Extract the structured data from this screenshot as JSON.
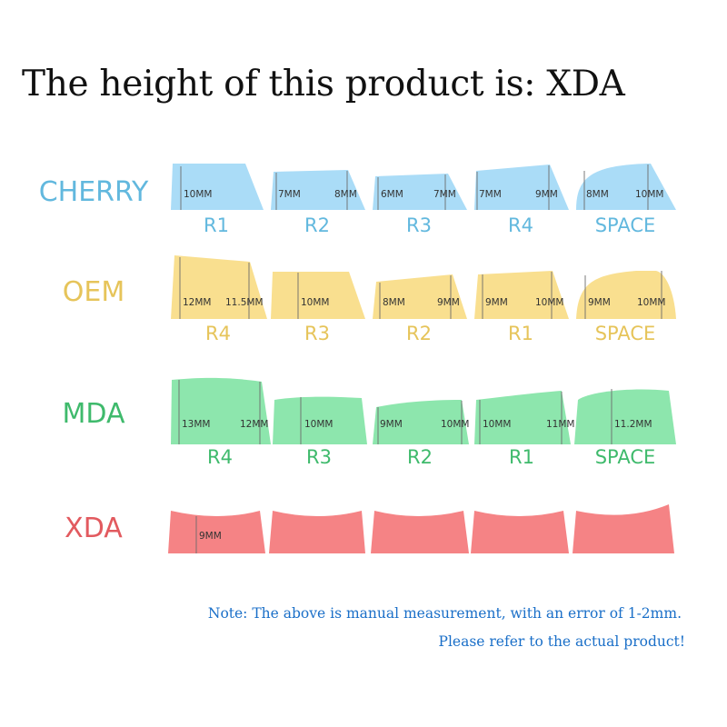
{
  "title": "The height of this product is: XDA",
  "colors": {
    "cherry_fill": "#aadcf7",
    "cherry_text": "#62b8de",
    "oem_fill": "#f9df8f",
    "oem_text": "#e6c45a",
    "mda_fill": "#8de6ad",
    "mda_text": "#3fba6c",
    "xda_fill": "#f58385",
    "xda_text": "#e25a5f",
    "row_label": "#555555",
    "note": "#1a6fc8"
  },
  "profiles": [
    {
      "name": "CHERRY",
      "keys": [
        {
          "row": "R1",
          "measurements": [
            "10MM"
          ]
        },
        {
          "row": "R2",
          "measurements": [
            "7MM",
            "8MM"
          ]
        },
        {
          "row": "R3",
          "measurements": [
            "6MM",
            "7MM"
          ]
        },
        {
          "row": "R4",
          "measurements": [
            "7MM",
            "9MM"
          ]
        },
        {
          "row": "SPACE",
          "measurements": [
            "8MM",
            "10MM"
          ]
        }
      ]
    },
    {
      "name": "OEM",
      "keys": [
        {
          "row": "R4",
          "measurements": [
            "12MM",
            "11.5MM"
          ]
        },
        {
          "row": "R3",
          "measurements": [
            "10MM"
          ]
        },
        {
          "row": "R2",
          "measurements": [
            "8MM",
            "9MM"
          ]
        },
        {
          "row": "R1",
          "measurements": [
            "9MM",
            "10MM"
          ]
        },
        {
          "row": "SPACE",
          "measurements": [
            "9MM",
            "10MM"
          ]
        }
      ]
    },
    {
      "name": "MDA",
      "keys": [
        {
          "row": "R4",
          "measurements": [
            "13MM",
            "12MM"
          ]
        },
        {
          "row": "R3",
          "measurements": [
            "10MM"
          ]
        },
        {
          "row": "R2",
          "measurements": [
            "9MM",
            "10MM"
          ]
        },
        {
          "row": "R1",
          "measurements": [
            "10MM",
            "11MM"
          ]
        },
        {
          "row": "SPACE",
          "measurements": [
            "11.2MM"
          ]
        }
      ]
    },
    {
      "name": "XDA",
      "keys": [
        {
          "row": "",
          "measurements": [
            "9MM"
          ]
        },
        {
          "row": "",
          "measurements": []
        },
        {
          "row": "",
          "measurements": []
        },
        {
          "row": "",
          "measurements": []
        },
        {
          "row": "",
          "measurements": []
        }
      ]
    }
  ],
  "note": {
    "line1": "Note: The above is manual measurement, with an error of 1-2mm.",
    "line2": "Please refer to the actual product!"
  }
}
